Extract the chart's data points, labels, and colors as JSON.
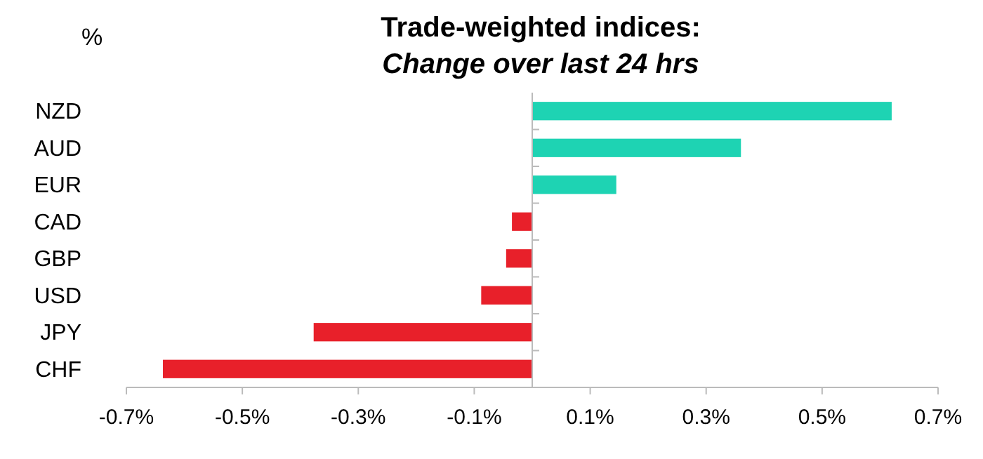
{
  "chart_data": {
    "type": "bar",
    "orientation": "horizontal",
    "title": "Trade-weighted indices:",
    "subtitle": "Change over last 24 hrs",
    "ylabel": "%",
    "categories": [
      "NZD",
      "AUD",
      "EUR",
      "CAD",
      "GBP",
      "USD",
      "JPY",
      "CHF"
    ],
    "values": [
      0.62,
      0.36,
      0.145,
      -0.035,
      -0.045,
      -0.088,
      -0.377,
      -0.637
    ],
    "colors": [
      "#1ed3b3",
      "#1ed3b3",
      "#1ed3b3",
      "#e8202a",
      "#e8202a",
      "#e8202a",
      "#e8202a",
      "#e8202a"
    ],
    "xlim": [
      -0.7,
      0.7
    ],
    "xticks": [
      {
        "value": -0.7,
        "label": "-0.7%"
      },
      {
        "value": -0.5,
        "label": "-0.5%"
      },
      {
        "value": -0.3,
        "label": "-0.3%"
      },
      {
        "value": -0.1,
        "label": "-0.1%"
      },
      {
        "value": 0.1,
        "label": "0.1%"
      },
      {
        "value": 0.3,
        "label": "0.3%"
      },
      {
        "value": 0.5,
        "label": "0.5%"
      },
      {
        "value": 0.7,
        "label": "0.7%"
      }
    ],
    "grid": false
  }
}
